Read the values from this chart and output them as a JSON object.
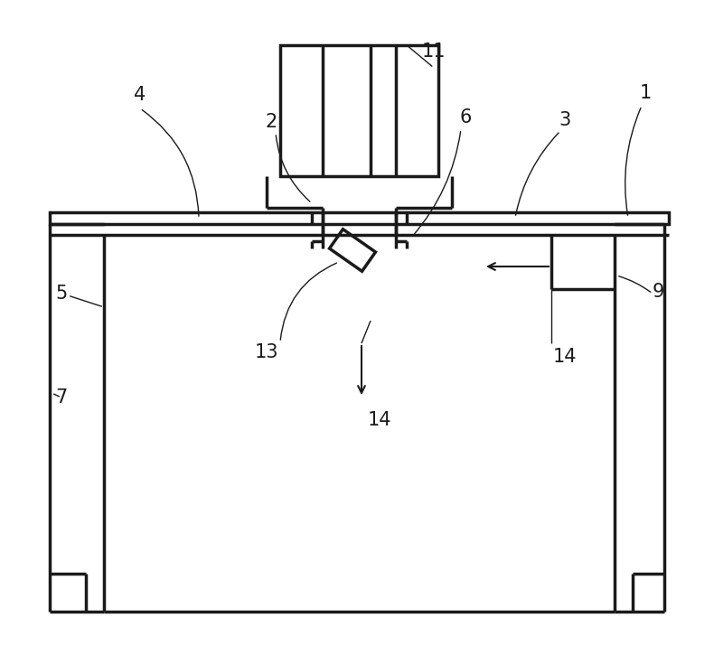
{
  "bg_color": "#ffffff",
  "line_color": "#1a1a1a",
  "lw": 2.5,
  "tlw": 1.0,
  "fig_width": 7.9,
  "fig_height": 7.35
}
